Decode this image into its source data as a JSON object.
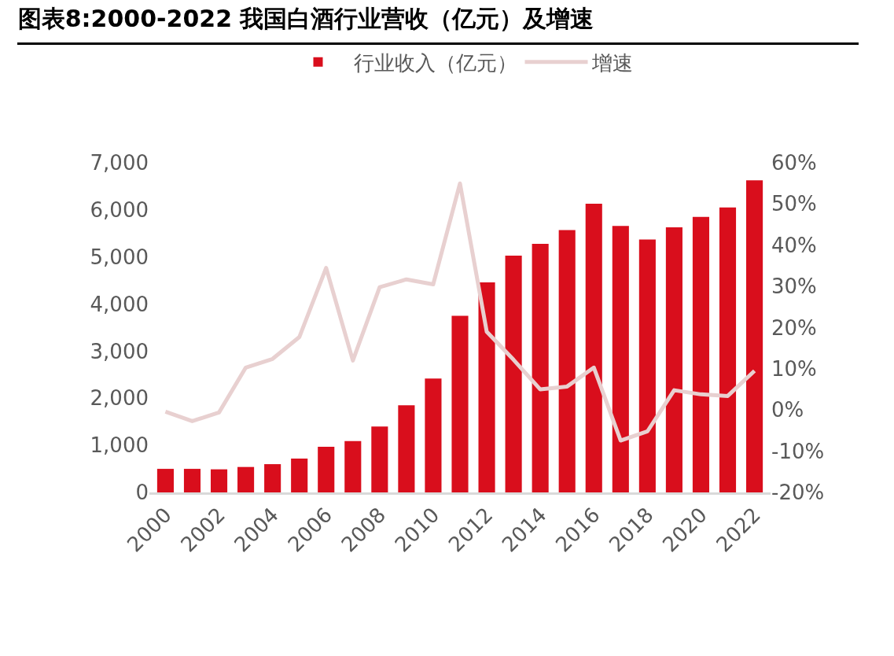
{
  "chart_data": {
    "type": "bar",
    "title": "图表8:2000-2022 我国白酒行业营收（亿元）及增速",
    "categories": [
      "2000",
      null,
      "2002",
      null,
      "2004",
      null,
      "2006",
      null,
      "2008",
      null,
      "2010",
      null,
      "2012",
      null,
      "2014",
      null,
      "2016",
      null,
      "2018",
      null,
      "2020",
      null,
      "2022"
    ],
    "series": [
      {
        "name": "行业收入（亿元）",
        "color": "#d90e1c",
        "values": [
          500,
          500,
          490,
          540,
          600,
          720,
          970,
          1090,
          1400,
          1850,
          2420,
          3750,
          4460,
          5030,
          5280,
          5570,
          6130,
          5660,
          5370,
          5630,
          5850,
          6050,
          6630
        ]
      },
      {
        "name": "增速",
        "type": "line",
        "axis": "y2",
        "color": "#e8d0d0",
        "values": [
          -0.4,
          -2.7,
          -0.6,
          10.3,
          12.4,
          17.7,
          34.5,
          12.0,
          29.8,
          31.7,
          30.5,
          55,
          19.0,
          12.2,
          5.0,
          5.7,
          10.3,
          -7.4,
          -5.2,
          4.8,
          3.8,
          3.4,
          9.5
        ]
      }
    ],
    "ylim": [
      0,
      7000
    ],
    "yticks": [
      0,
      {
        "value": 1000,
        "label": "1,000"
      },
      {
        "value": 2000,
        "label": "2,000"
      },
      {
        "value": 3000,
        "label": "3,000"
      },
      {
        "value": 4000,
        "label": "4,000"
      },
      {
        "value": 5000,
        "label": "5,000"
      },
      {
        "value": 6000,
        "label": "6,000"
      },
      {
        "value": 7000,
        "label": "7,000"
      }
    ],
    "y2lim": [
      -20,
      60
    ],
    "y2ticks": [
      {
        "value": -20,
        "label": "-20%"
      },
      {
        "value": -10,
        "label": "-10%"
      },
      {
        "value": 0,
        "label": "0%"
      },
      {
        "value": 10,
        "label": "10%"
      },
      {
        "value": 20,
        "label": "20%"
      },
      {
        "value": 30,
        "label": "30%"
      },
      {
        "value": 40,
        "label": "40%"
      },
      {
        "value": 50,
        "label": "50%"
      },
      {
        "value": 60,
        "label": "60%"
      }
    ],
    "grid": false,
    "legend": "top",
    "marker": "none",
    "line_style": "solid"
  }
}
